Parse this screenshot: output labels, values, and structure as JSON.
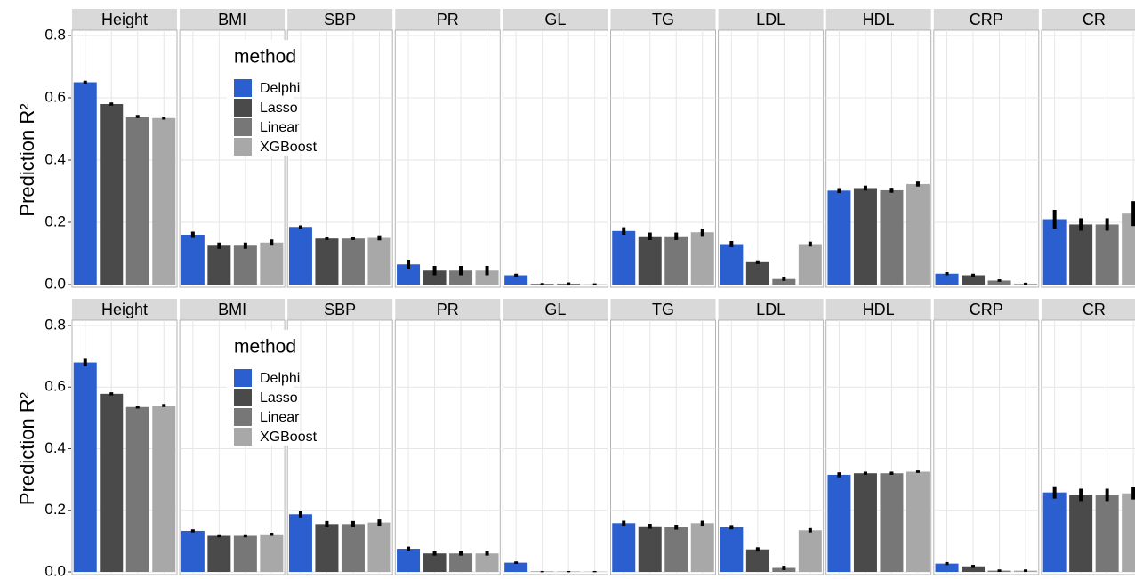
{
  "chart_data": [
    {
      "type": "bar",
      "ylabel": "Prediction R²",
      "ylim": [
        0,
        0.8
      ],
      "yticks": [
        {
          "value": 0,
          "label": "0.0"
        },
        0.2,
        0.4,
        0.6,
        0.8
      ],
      "grid": true,
      "legend_title": "method",
      "legend_position": "top-left",
      "facets": [
        "Height",
        "BMI",
        "SBP",
        "PR",
        "GL",
        "TG",
        "LDL",
        "HDL",
        "CRP",
        "CR"
      ],
      "series": [
        {
          "name": "Delphi",
          "color": "#2b5fd0",
          "values": [
            0.65,
            0.16,
            0.185,
            0.065,
            0.03,
            0.172,
            0.13,
            0.302,
            0.035,
            0.21
          ],
          "errors": [
            0.005,
            0.01,
            0.005,
            0.015,
            0.005,
            0.012,
            0.01,
            0.008,
            0.005,
            0.03
          ]
        },
        {
          "name": "Lasso",
          "color": "#4a4a4a",
          "values": [
            0.58,
            0.125,
            0.148,
            0.045,
            0.002,
            0.155,
            0.072,
            0.31,
            0.03,
            0.193
          ],
          "errors": [
            0.005,
            0.01,
            0.005,
            0.015,
            0.003,
            0.012,
            0.006,
            0.008,
            0.005,
            0.02
          ]
        },
        {
          "name": "Linear",
          "color": "#777777",
          "values": [
            0.54,
            0.125,
            0.148,
            0.045,
            0.003,
            0.155,
            0.018,
            0.303,
            0.013,
            0.193
          ],
          "errors": [
            0.005,
            0.01,
            0.005,
            0.015,
            0.004,
            0.012,
            0.006,
            0.008,
            0.004,
            0.02
          ]
        },
        {
          "name": "XGBoost",
          "color": "#a8a8a8",
          "values": [
            0.535,
            0.135,
            0.15,
            0.045,
            0.001,
            0.168,
            0.13,
            0.323,
            0.003,
            0.228
          ],
          "errors": [
            0.005,
            0.01,
            0.008,
            0.015,
            0.003,
            0.012,
            0.008,
            0.008,
            0.003,
            0.04
          ]
        }
      ]
    },
    {
      "type": "bar",
      "ylabel": "Prediction R²",
      "ylim": [
        0,
        0.8
      ],
      "yticks": [
        {
          "value": 0,
          "label": "0.0"
        },
        0.2,
        0.4,
        0.6,
        0.8
      ],
      "grid": true,
      "legend_title": "method",
      "legend_position": "top-left",
      "facets": [
        "Height",
        "BMI",
        "SBP",
        "PR",
        "GL",
        "TG",
        "LDL",
        "HDL",
        "CRP",
        "CR"
      ],
      "series": [
        {
          "name": "Delphi",
          "color": "#2b5fd0",
          "values": [
            0.68,
            0.133,
            0.187,
            0.075,
            0.03,
            0.158,
            0.145,
            0.315,
            0.027,
            0.258
          ],
          "errors": [
            0.012,
            0.005,
            0.01,
            0.007,
            0.004,
            0.008,
            0.007,
            0.008,
            0.005,
            0.02
          ]
        },
        {
          "name": "Lasso",
          "color": "#4a4a4a",
          "values": [
            0.578,
            0.117,
            0.155,
            0.06,
            0.001,
            0.148,
            0.073,
            0.32,
            0.018,
            0.25
          ],
          "errors": [
            0.005,
            0.005,
            0.01,
            0.007,
            0.002,
            0.008,
            0.007,
            0.005,
            0.005,
            0.02
          ]
        },
        {
          "name": "Linear",
          "color": "#777777",
          "values": [
            0.535,
            0.117,
            0.155,
            0.06,
            0.001,
            0.145,
            0.013,
            0.32,
            0.004,
            0.25
          ],
          "errors": [
            0.005,
            0.005,
            0.01,
            0.007,
            0.002,
            0.008,
            0.007,
            0.005,
            0.004,
            0.02
          ]
        },
        {
          "name": "XGBoost",
          "color": "#a8a8a8",
          "values": [
            0.54,
            0.122,
            0.16,
            0.06,
            0.001,
            0.158,
            0.135,
            0.325,
            0.004,
            0.255
          ],
          "errors": [
            0.005,
            0.005,
            0.01,
            0.007,
            0.002,
            0.008,
            0.007,
            0.004,
            0.004,
            0.02
          ]
        }
      ]
    }
  ]
}
